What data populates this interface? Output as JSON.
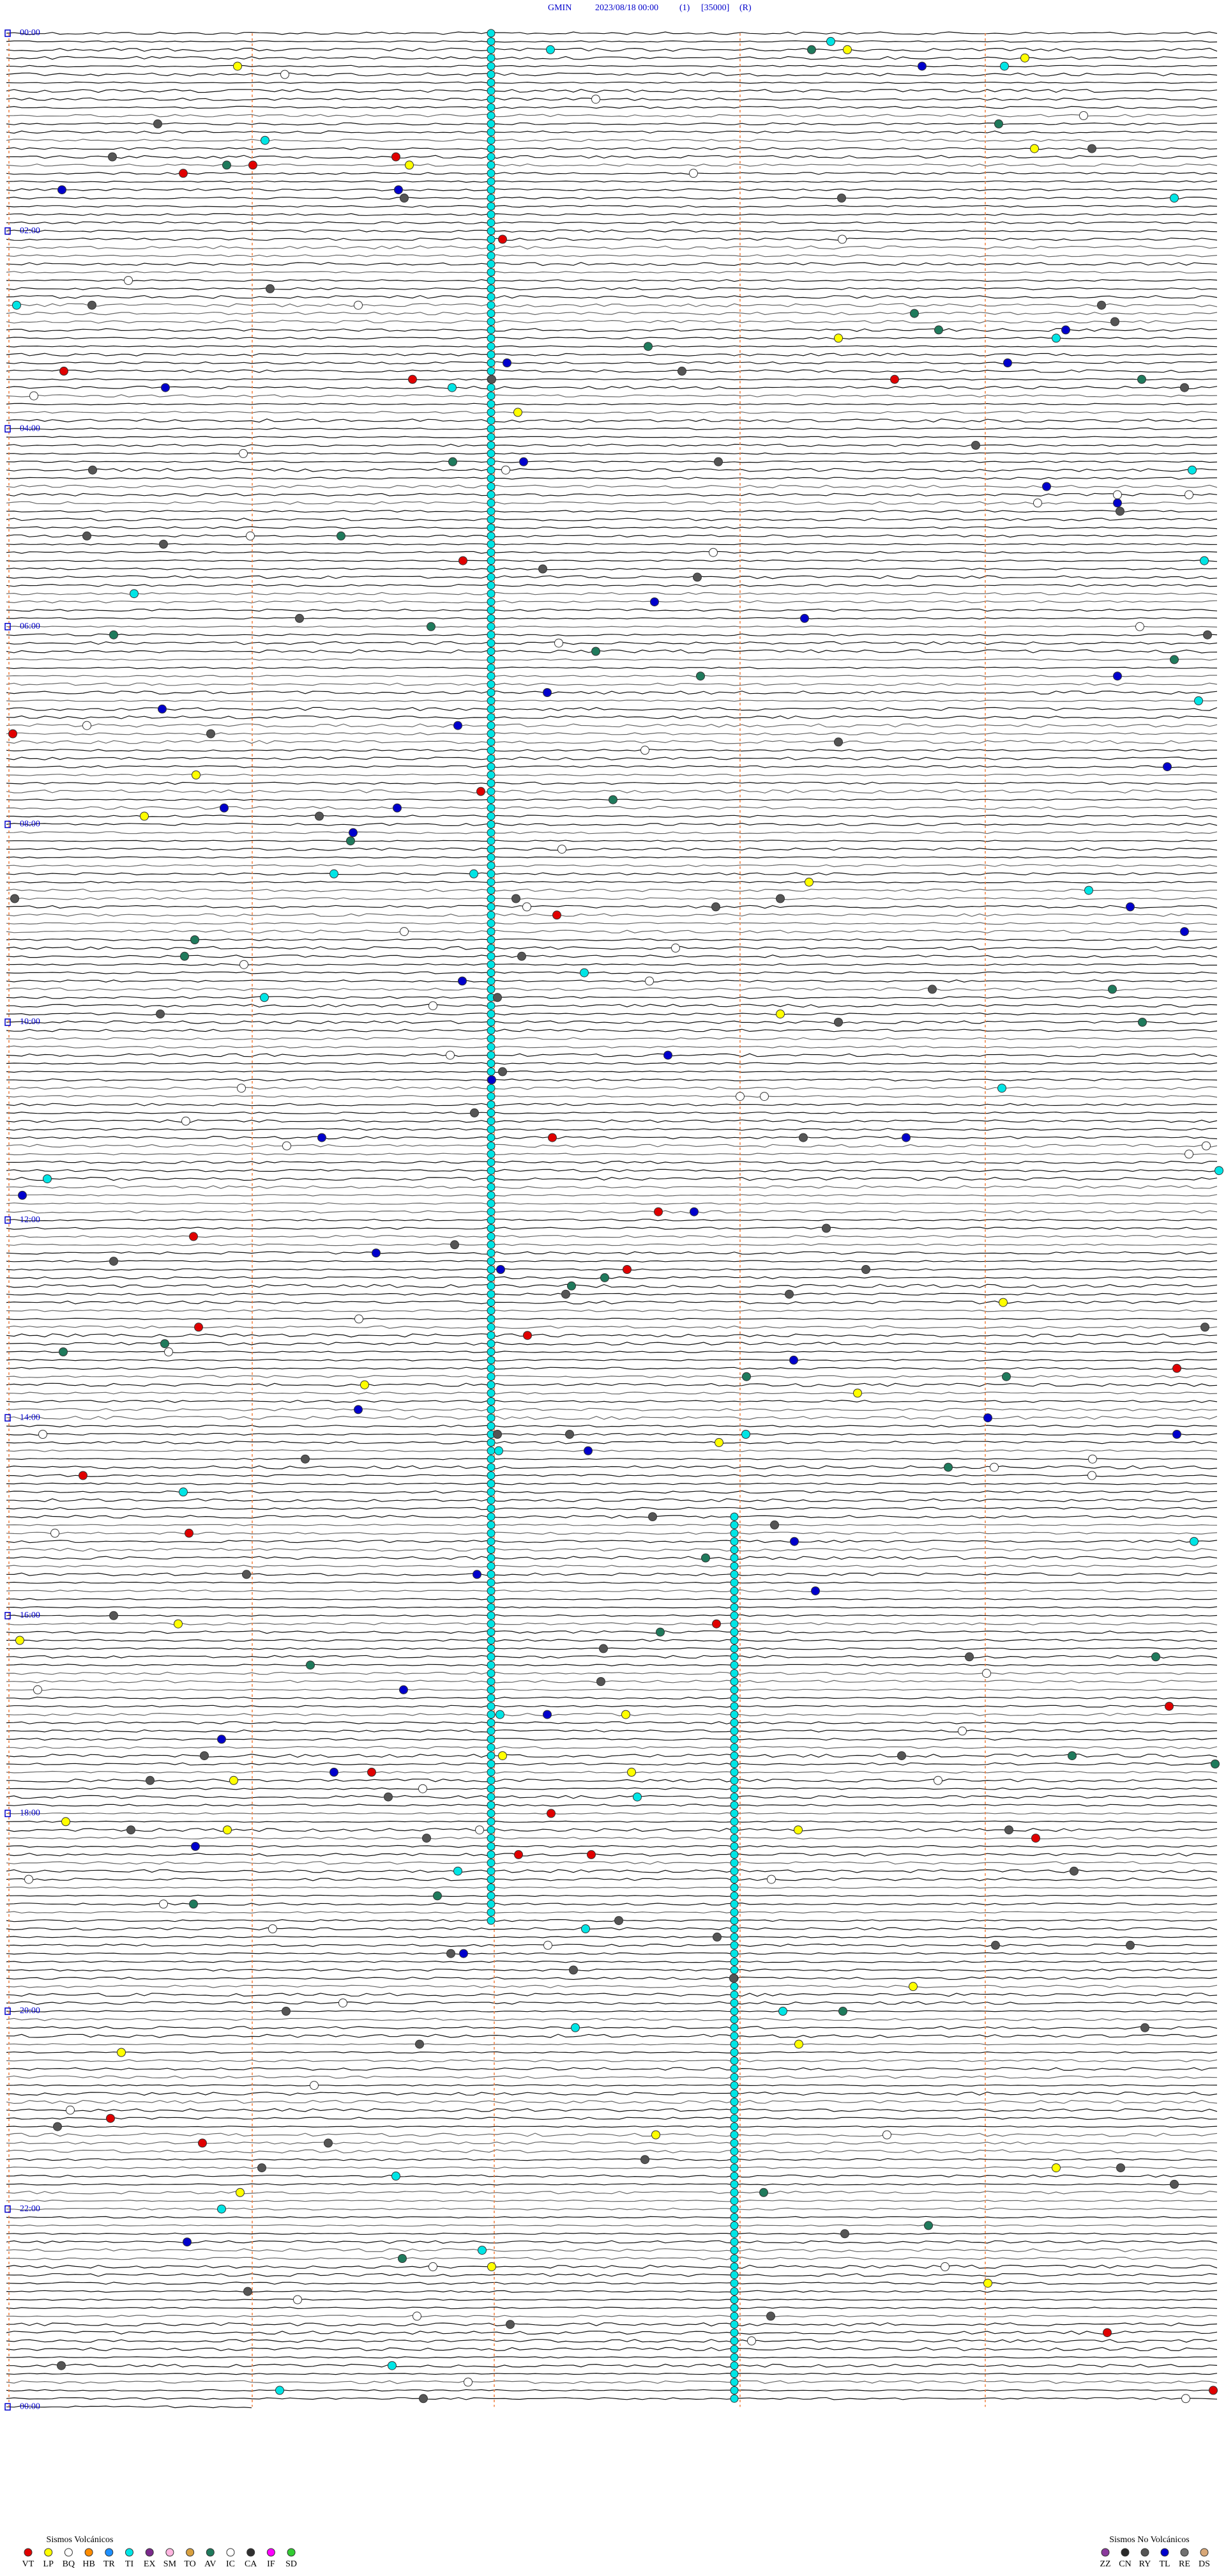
{
  "header": {
    "station": "GMIN",
    "datetime": "2023/08/18 00:00",
    "channel": "(1)",
    "scale": "[35000]",
    "mode": "(R)"
  },
  "hour_labels": [
    "00:00",
    "02:00",
    "04:00",
    "06:00",
    "08:00",
    "10:00",
    "12:00",
    "14:00",
    "16:00",
    "18:00",
    "20:00",
    "22:00",
    "00:00"
  ],
  "legend_volcanic": {
    "title": "Sismos Volcánicos",
    "items": [
      {
        "code": "VT",
        "color": "#e00000"
      },
      {
        "code": "LP",
        "color": "#ffff00"
      },
      {
        "code": "BQ",
        "color": "#ffffff"
      },
      {
        "code": "HB",
        "color": "#ff8c00"
      },
      {
        "code": "TR",
        "color": "#1e90ff"
      },
      {
        "code": "TI",
        "color": "#00e5e5"
      },
      {
        "code": "EX",
        "color": "#7b2a8c"
      },
      {
        "code": "SM",
        "color": "#ffb6e0"
      },
      {
        "code": "TO",
        "color": "#d8a040"
      },
      {
        "code": "AV",
        "color": "#1f7a5c"
      },
      {
        "code": "IC",
        "color": "#ffffff"
      },
      {
        "code": "CA",
        "color": "#303030"
      },
      {
        "code": "IF",
        "color": "#ff00ff"
      },
      {
        "code": "SD",
        "color": "#33cc33"
      }
    ]
  },
  "legend_non_volcanic": {
    "title": "Sismos No Volcánicos",
    "items": [
      {
        "code": "ZZ",
        "color": "#8b3a9c"
      },
      {
        "code": "CN",
        "color": "#2a2a2a"
      },
      {
        "code": "RY",
        "color": "#555555"
      },
      {
        "code": "TL",
        "color": "#0000cc"
      },
      {
        "code": "RE",
        "color": "#707070"
      },
      {
        "code": "DS",
        "color": "#d8a878"
      }
    ]
  }
}
